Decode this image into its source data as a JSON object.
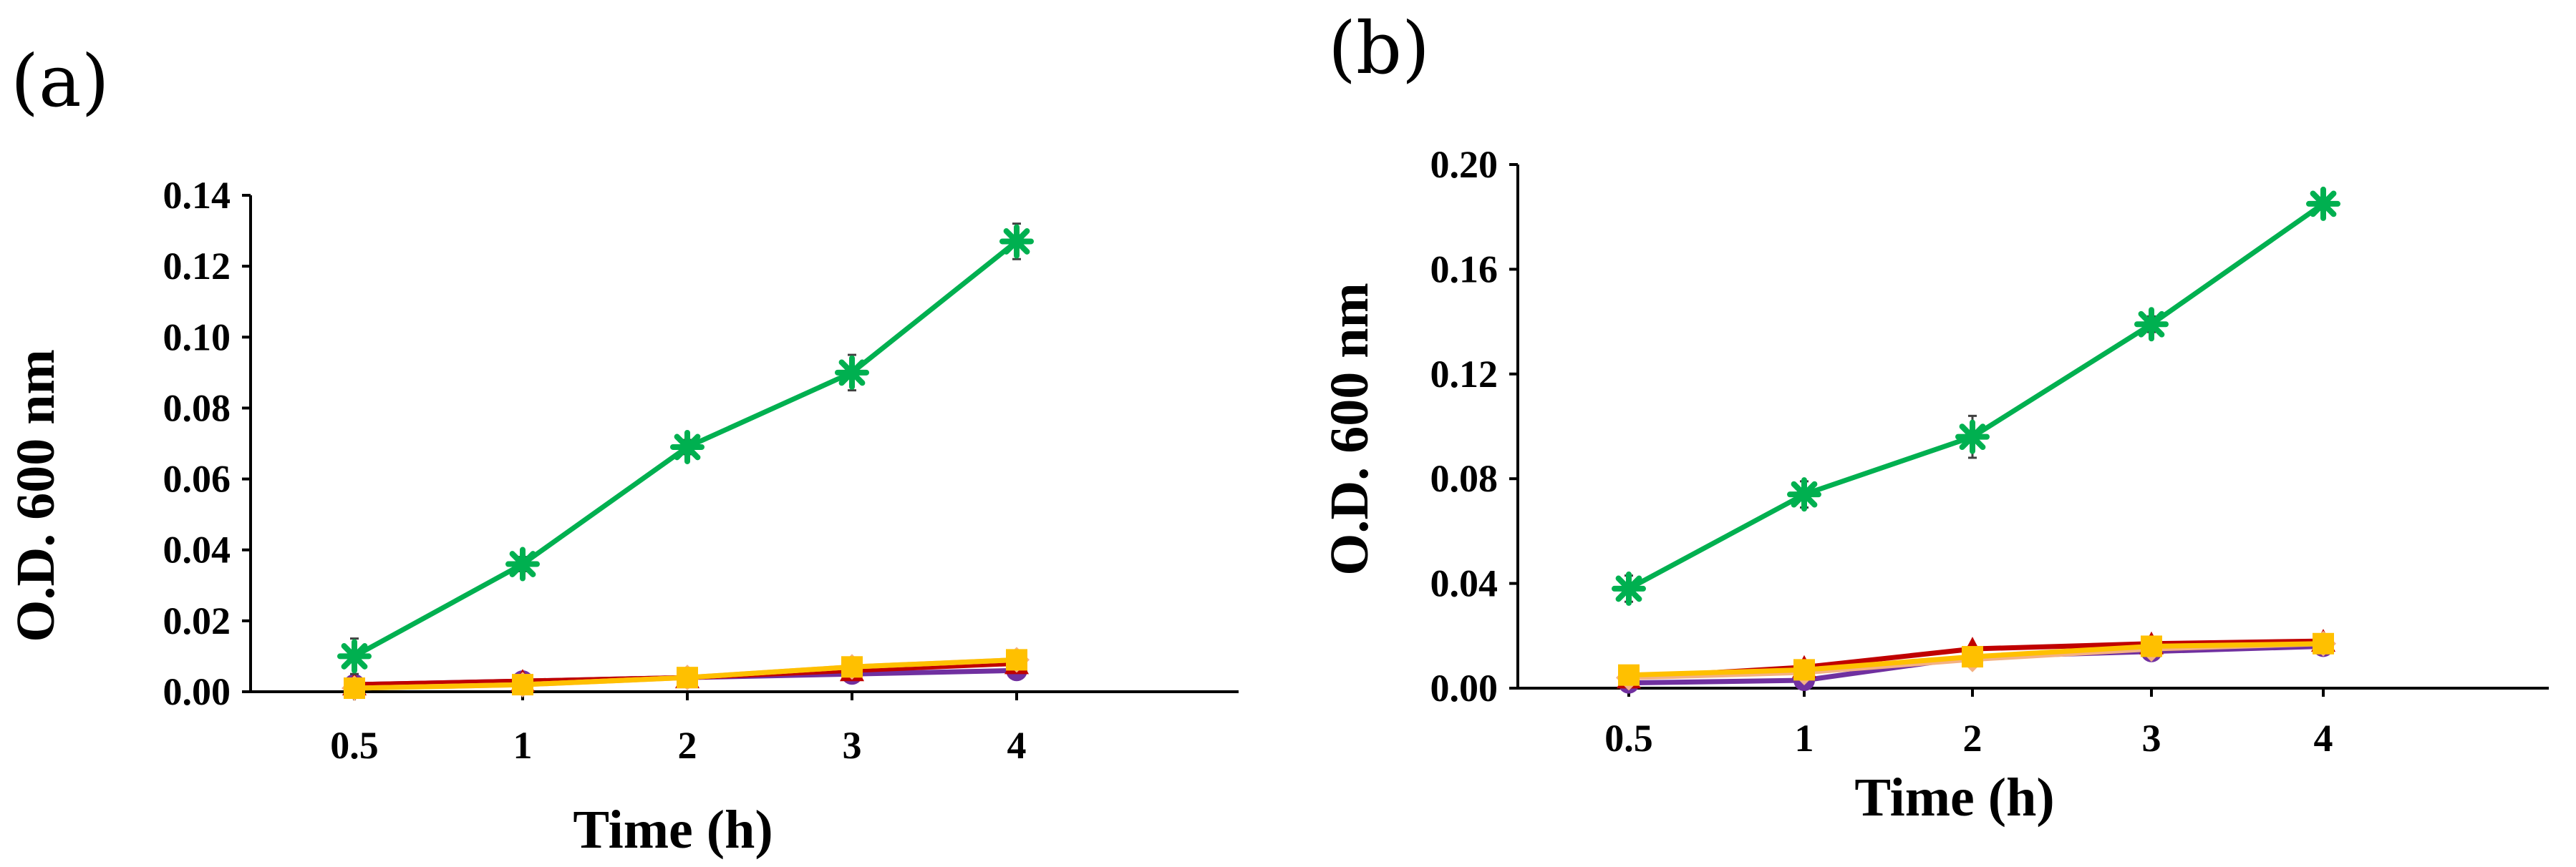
{
  "chart_data": [
    {
      "type": "line",
      "panel_label": "(a)",
      "xlabel": "Time (h)",
      "ylabel": "O.D. 600 nm",
      "categories": [
        "0.5",
        "1",
        "2",
        "3",
        "4"
      ],
      "ylim": [
        0,
        0.14
      ],
      "yticks": [
        "0.00",
        "0.02",
        "0.04",
        "0.06",
        "0.08",
        "0.10",
        "0.12",
        "0.14"
      ],
      "grid": false,
      "legend": "none",
      "series": [
        {
          "name": "purple",
          "color": "#7030A0",
          "marker": "circle",
          "values": [
            0.002,
            0.003,
            0.004,
            0.005,
            0.006
          ],
          "errors": [
            0.001,
            0.001,
            0.001,
            0.001,
            0.001
          ]
        },
        {
          "name": "red",
          "color": "#C00000",
          "marker": "triangle",
          "values": [
            0.002,
            0.003,
            0.004,
            0.006,
            0.008
          ],
          "errors": [
            0.001,
            0.001,
            0.001,
            0.001,
            0.001
          ]
        },
        {
          "name": "orange",
          "color": "#F4B183",
          "marker": "diamond",
          "values": [
            0.001,
            0.002,
            0.004,
            0.007,
            0.009
          ],
          "errors": [
            0.001,
            0.001,
            0.001,
            0.001,
            0.001
          ]
        },
        {
          "name": "yellow",
          "color": "#FFC000",
          "marker": "square",
          "values": [
            0.001,
            0.002,
            0.004,
            0.007,
            0.009
          ],
          "errors": [
            0.001,
            0.001,
            0.001,
            0.001,
            0.001
          ]
        },
        {
          "name": "green",
          "color": "#00B050",
          "marker": "asterisk",
          "values": [
            0.01,
            0.036,
            0.069,
            0.09,
            0.127
          ],
          "errors": [
            0.005,
            0.002,
            0.002,
            0.005,
            0.005
          ]
        }
      ]
    },
    {
      "type": "line",
      "panel_label": "(b)",
      "xlabel": "Time (h)",
      "ylabel": "O.D. 600 nm",
      "categories": [
        "0.5",
        "1",
        "2",
        "3",
        "4"
      ],
      "ylim": [
        0,
        0.2
      ],
      "yticks": [
        "0.00",
        "0.04",
        "0.08",
        "0.12",
        "0.16",
        "0.20"
      ],
      "grid": false,
      "legend": "none",
      "series": [
        {
          "name": "purple",
          "color": "#7030A0",
          "marker": "circle",
          "values": [
            0.002,
            0.003,
            0.012,
            0.014,
            0.016
          ],
          "errors": [
            0.001,
            0.001,
            0.001,
            0.001,
            0.001
          ]
        },
        {
          "name": "red",
          "color": "#C00000",
          "marker": "triangle",
          "values": [
            0.004,
            0.008,
            0.015,
            0.017,
            0.018
          ],
          "errors": [
            0.001,
            0.001,
            0.001,
            0.001,
            0.001
          ]
        },
        {
          "name": "orange",
          "color": "#F4B183",
          "marker": "diamond",
          "values": [
            0.004,
            0.006,
            0.011,
            0.015,
            0.017
          ],
          "errors": [
            0.001,
            0.001,
            0.001,
            0.001,
            0.001
          ]
        },
        {
          "name": "yellow",
          "color": "#FFC000",
          "marker": "square",
          "values": [
            0.005,
            0.007,
            0.012,
            0.016,
            0.017
          ],
          "errors": [
            0.001,
            0.001,
            0.001,
            0.001,
            0.001
          ]
        },
        {
          "name": "green",
          "color": "#00B050",
          "marker": "asterisk",
          "values": [
            0.038,
            0.074,
            0.096,
            0.139,
            0.185
          ],
          "errors": [
            0.005,
            0.005,
            0.008,
            0.003,
            0.002
          ]
        }
      ]
    }
  ]
}
